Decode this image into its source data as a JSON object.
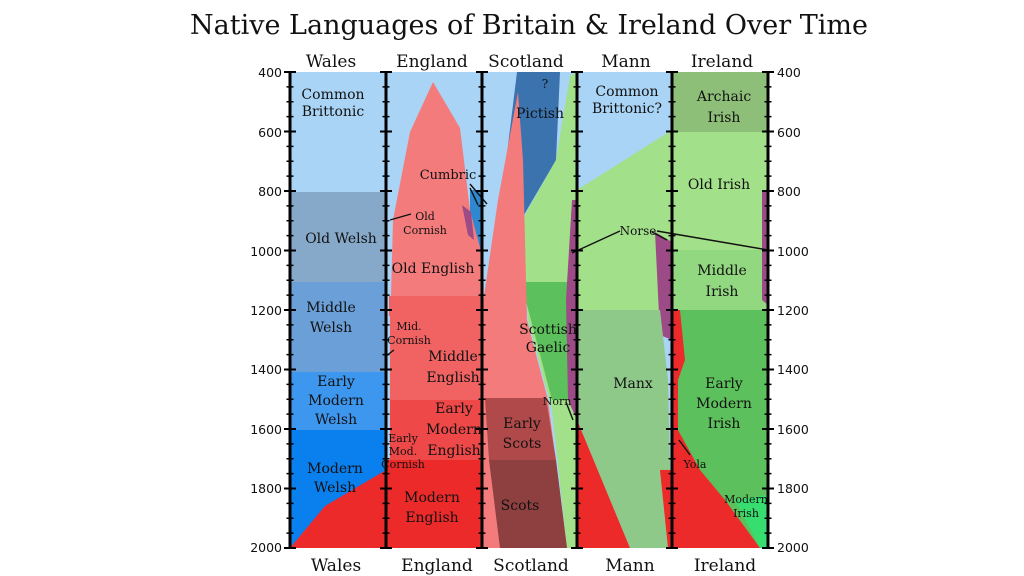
{
  "title": "Native Languages of Britain & Ireland Over Time",
  "columns": [
    "Wales",
    "England",
    "Scotland",
    "Mann",
    "Ireland"
  ],
  "axis": {
    "ticks": [
      "400",
      "600",
      "800",
      "1000",
      "1200",
      "1400",
      "1600",
      "1800",
      "2000"
    ],
    "range": [
      400,
      2000
    ]
  },
  "labels": {
    "wales_brittonic": "Common\nBrittonic",
    "old_welsh": "Old Welsh",
    "middle_welsh": "Middle\nWelsh",
    "early_modern_welsh": "Early\nModern\nWelsh",
    "modern_welsh": "Modern\nWelsh",
    "cumbric": "Cumbric",
    "old_cornish": "Old\nCornish",
    "old_english": "Old English",
    "mid_cornish": "Mid.\nCornish",
    "middle_english": "Middle\nEnglish",
    "early_modern_english": "Early\nModern\nEnglish",
    "early_mod_cornish": "Early\nMod.\nCornish",
    "modern_english": "Modern\nEnglish",
    "pictish_q": "?",
    "pictish": "Pictish",
    "scottish_gaelic": "Scottish\nGaelic",
    "norn": "Norn",
    "early_scots": "Early\nScots",
    "scots": "Scots",
    "mann_brittonic": "Common\nBrittonic?",
    "norse": "Norse",
    "manx": "Manx",
    "archaic_irish": "Archaic\nIrish",
    "old_irish": "Old Irish",
    "middle_irish": "Middle\nIrish",
    "early_modern_irish": "Early\nModern\nIrish",
    "yola": "Yola",
    "modern_irish": "Modern\nIrish"
  },
  "colors": {
    "brittonic": "#a9d4f5",
    "old_welsh": "#86a9c9",
    "middle_welsh": "#6a9fd8",
    "early_modern_welsh": "#3d97ee",
    "modern_welsh": "#0a7fee",
    "pictish": "#3a73ad",
    "cumbric": "#2f87cf",
    "old_english": "#f47b7b",
    "middle_english": "#f16363",
    "early_modern_english": "#ee4848",
    "modern_english": "#ec2a2a",
    "early_scots": "#b04a4a",
    "scots": "#8e3f3f",
    "norse": "#9c4b86",
    "gaelic_green": "#a3e08a",
    "archaic_irish": "#8ebf79",
    "middle_irish": "#92d880",
    "early_modern_irish": "#5cc05c",
    "manx": "#8fc98a",
    "modern_irish": "#38dd70"
  }
}
